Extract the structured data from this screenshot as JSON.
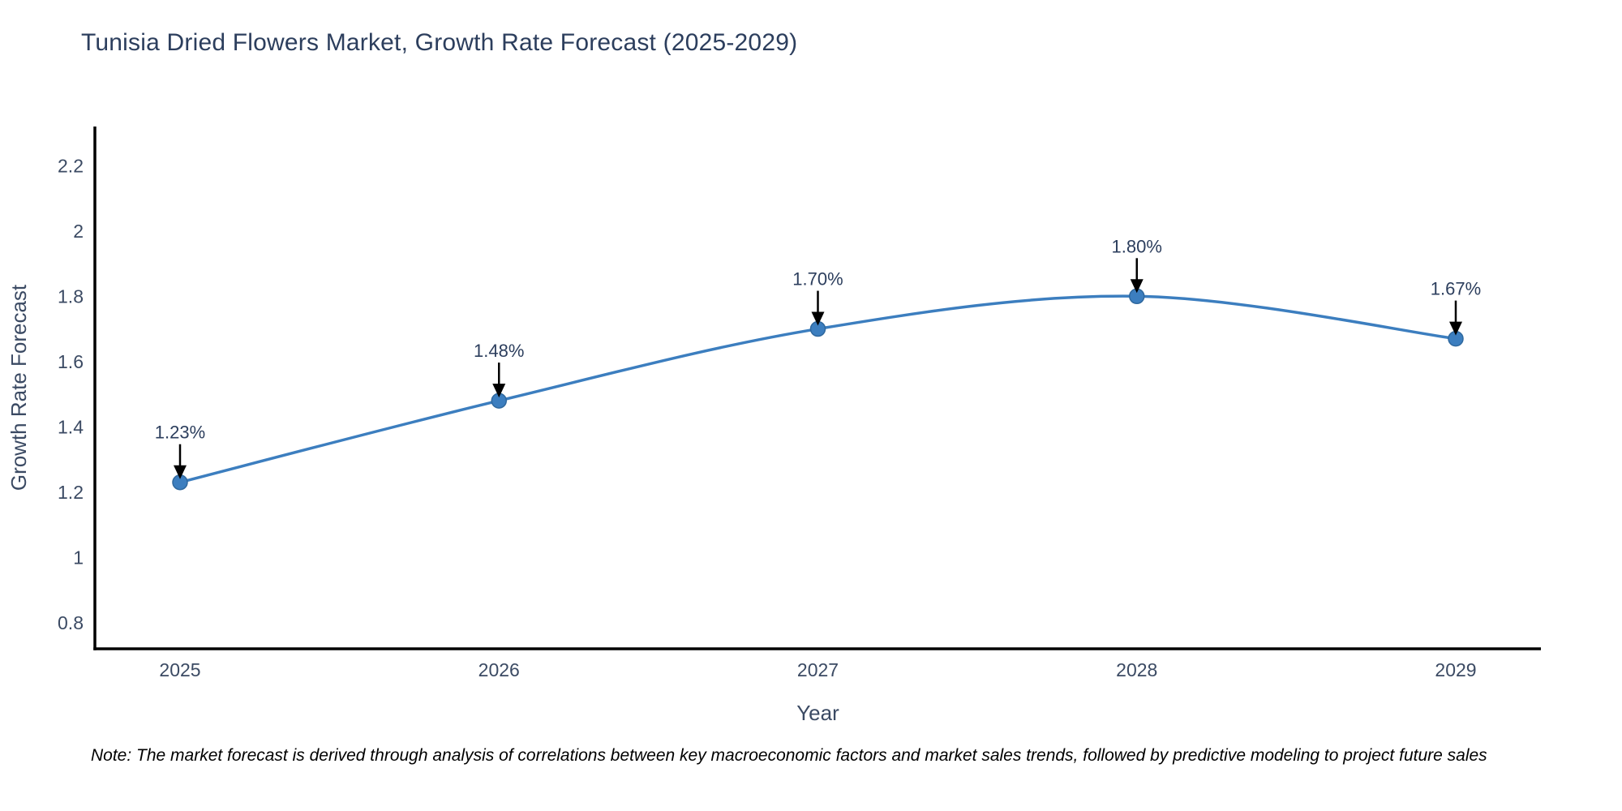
{
  "chart_data": {
    "type": "line",
    "title": "Tunisia Dried Flowers Market, Growth Rate Forecast (2025-2029)",
    "categories": [
      "2025",
      "2026",
      "2027",
      "2028",
      "2029"
    ],
    "values": [
      1.23,
      1.48,
      1.7,
      1.8,
      1.67
    ],
    "point_labels": [
      "1.23%",
      "1.48%",
      "1.70%",
      "1.80%",
      "1.67%"
    ],
    "series_name": "Growth Rate Forecast",
    "xlabel": "Year",
    "ylabel": "Growth Rate Forecast",
    "ylim": [
      0.72,
      2.32
    ],
    "yticks": [
      0.8,
      1,
      1.2,
      1.4,
      1.6,
      1.8,
      2,
      2.2
    ],
    "ytick_labels": [
      "0.8",
      "1",
      "1.2",
      "1.4",
      "1.6",
      "1.8",
      "2",
      "2.2"
    ],
    "grid": false,
    "legend_position": "none",
    "line_shape": "spline",
    "annotations_have_arrows": true,
    "colors": {
      "line": "#3c7ebf",
      "marker": "#3c7ebf",
      "marker_edge": "#2f689e",
      "axis": "#000000",
      "tick": "#3b4a63",
      "title": "#2c3e5d",
      "annotation": "#2c3e5d",
      "arrow": "#000000",
      "background": "#ffffff"
    }
  },
  "note": {
    "text": "Note: The market forecast is derived through analysis of correlations between key macroeconomic factors and market sales trends, followed by predictive modeling to project future sales"
  }
}
